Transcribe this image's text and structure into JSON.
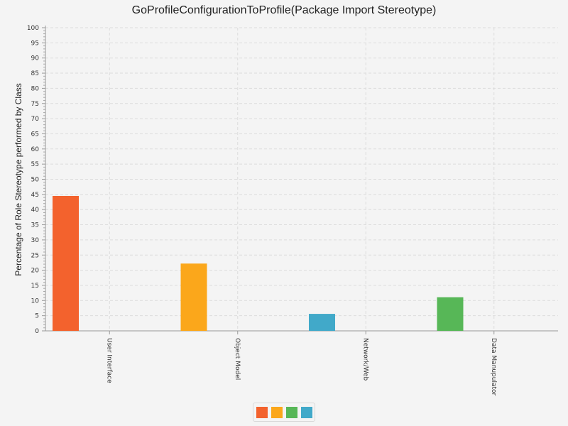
{
  "chart_data": {
    "type": "bar",
    "title": "GoProfileConfigurationToProfile(Package Import Stereotype)",
    "ylabel": "Percentage of Role Stereotype performed by Class",
    "xlabel": "",
    "categories": [
      "User Interface",
      "Object Model",
      "Network/Web",
      "Data Manupulator"
    ],
    "values": [
      44.5,
      22.2,
      5.6,
      11.1
    ],
    "colors": [
      "#f3622d",
      "#fba71b",
      "#41a9c9",
      "#57b757"
    ],
    "ylim": [
      0,
      100
    ],
    "ytick_step": 5,
    "yticks": [
      "0",
      "5",
      "10",
      "15",
      "20",
      "25",
      "30",
      "35",
      "40",
      "45",
      "50",
      "55",
      "60",
      "65",
      "70",
      "75",
      "80",
      "85",
      "90",
      "95",
      "100"
    ],
    "grid": true,
    "legend": {
      "placement": "bottom-center",
      "swatches": [
        "#f3622d",
        "#fba71b",
        "#57b757",
        "#41a9c9"
      ]
    }
  }
}
